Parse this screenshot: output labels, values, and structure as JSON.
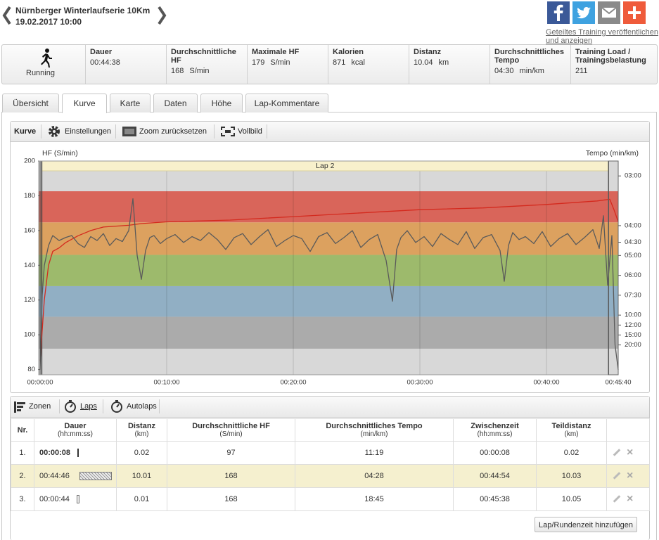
{
  "header": {
    "title": "Nürnberger Winterlaufserie 10Km",
    "date": "19.02.2017 10:00",
    "share_link": "Geteiltes Training veröffentlichen und anzeigen"
  },
  "summary": {
    "sport": "Running",
    "stats": [
      {
        "label": "Dauer",
        "value": "00:44:38"
      },
      {
        "label": "Durchschnittliche HF",
        "value": "168",
        "unit": "S/min"
      },
      {
        "label": "Maximale HF",
        "value": "179",
        "unit": "S/min"
      },
      {
        "label": "Kalorien",
        "value": "871",
        "unit": "kcal"
      },
      {
        "label": "Distanz",
        "value": "10.04",
        "unit": "km"
      },
      {
        "label": "Durchschnittliches Tempo",
        "value": "04:30",
        "unit": "min/km"
      },
      {
        "label": "Training Load / Trainingsbelastung",
        "value": "211"
      }
    ]
  },
  "tabs": [
    "Übersicht",
    "Kurve",
    "Karte",
    "Daten",
    "Höhe",
    "Lap-Kommentare"
  ],
  "active_tab": 1,
  "chart_toolbar": {
    "title": "Kurve",
    "buttons": [
      "Einstellungen",
      "Zoom zurücksetzen",
      "Vollbild"
    ]
  },
  "chart_data": {
    "type": "line",
    "y_label": "HF (S/min)",
    "y2_label": "Tempo (min/km)",
    "lap_label": "Lap 2",
    "lap_span": [
      8,
      2694
    ],
    "xlim": [
      0,
      2740
    ],
    "xticks": [
      {
        "value": 0,
        "label": "00:00:00"
      },
      {
        "value": 600,
        "label": "00:10:00"
      },
      {
        "value": 1200,
        "label": "00:20:00"
      },
      {
        "value": 1800,
        "label": "00:30:00"
      },
      {
        "value": 2400,
        "label": "00:40:00"
      },
      {
        "value": 2740,
        "label": "00:45:40"
      }
    ],
    "ylim": [
      77,
      200
    ],
    "yticks": [
      80,
      100,
      120,
      140,
      160,
      180,
      200
    ],
    "y2lim": [
      0,
      21.5
    ],
    "y2ticks": [
      {
        "value": 20,
        "label": "03:00"
      },
      {
        "value": 15,
        "label": "04:00"
      },
      {
        "value": 13.33,
        "label": "04:30"
      },
      {
        "value": 12,
        "label": "05:00"
      },
      {
        "value": 10,
        "label": "06:00"
      },
      {
        "value": 8,
        "label": "07:30"
      },
      {
        "value": 6,
        "label": "10:00"
      },
      {
        "value": 5,
        "label": "12:00"
      },
      {
        "value": 4,
        "label": "15:00"
      },
      {
        "value": 3,
        "label": "20:00"
      }
    ],
    "grid": true,
    "zones": [
      {
        "from": 77,
        "to": 92,
        "color": "#d8d8d8"
      },
      {
        "from": 92,
        "to": 110.4,
        "color": "#ababab"
      },
      {
        "from": 110.4,
        "to": 128,
        "color": "#91afc4"
      },
      {
        "from": 128,
        "to": 146,
        "color": "#9dba6c"
      },
      {
        "from": 146,
        "to": 164.7,
        "color": "#dca15f"
      },
      {
        "from": 164.7,
        "to": 182.6,
        "color": "#d9655a"
      },
      {
        "from": 182.6,
        "to": 200,
        "color": "#d8d8d8"
      }
    ],
    "series": [
      {
        "color": "#d42a1e",
        "x": [
          0,
          20,
          40,
          60,
          90,
          120,
          180,
          240,
          300,
          420,
          480,
          600,
          900,
          1200,
          1500,
          1800,
          2100,
          2400,
          2640,
          2700,
          2720,
          2740
        ],
        "values": [
          85,
          120,
          140,
          148,
          150,
          153,
          157,
          160,
          162,
          163,
          164,
          165,
          166,
          168,
          170,
          172,
          173,
          175,
          177,
          178,
          172,
          165
        ]
      },
      {
        "color": "#5a5a5a",
        "axis": "y2",
        "x": [
          0,
          10,
          20,
          40,
          60,
          90,
          120,
          150,
          180,
          210,
          240,
          270,
          300,
          330,
          360,
          390,
          420,
          440,
          460,
          480,
          500,
          520,
          540,
          570,
          600,
          640,
          680,
          720,
          760,
          800,
          840,
          880,
          920,
          960,
          1000,
          1040,
          1080,
          1120,
          1160,
          1200,
          1240,
          1280,
          1320,
          1360,
          1400,
          1440,
          1480,
          1520,
          1560,
          1600,
          1640,
          1670,
          1690,
          1710,
          1740,
          1780,
          1820,
          1860,
          1900,
          1940,
          1980,
          2020,
          2060,
          2100,
          2140,
          2180,
          2200,
          2220,
          2240,
          2270,
          2300,
          2340,
          2380,
          2420,
          2460,
          2500,
          2540,
          2580,
          2620,
          2650,
          2670,
          2690,
          2710,
          2725,
          2740
        ],
        "values": [
          0.5,
          8,
          11,
          13,
          14,
          13.5,
          13.8,
          14,
          13.2,
          12.8,
          13.9,
          13.5,
          14.2,
          13,
          13.7,
          13.4,
          14.5,
          17.7,
          12,
          9.6,
          12.5,
          13.8,
          14,
          13.2,
          13.7,
          14.1,
          13.3,
          13.9,
          13.5,
          14.3,
          13.6,
          12.6,
          13.8,
          14.2,
          13.1,
          13.9,
          14.6,
          12.9,
          13.5,
          14,
          13.7,
          12.4,
          13.9,
          14.3,
          13.2,
          13.8,
          14.5,
          12.8,
          13.6,
          14.1,
          11.5,
          7.4,
          12.6,
          13.8,
          14.5,
          13.3,
          13.9,
          12.9,
          14.2,
          13.6,
          13.1,
          14.4,
          12.7,
          13.8,
          14.1,
          12.5,
          9.4,
          13,
          14.3,
          13.6,
          13.9,
          13.2,
          14.4,
          12.9,
          13.7,
          14.2,
          13.1,
          13.8,
          14.6,
          12.7,
          16,
          9,
          14,
          3,
          0.5
        ]
      }
    ]
  },
  "laps_toolbar": [
    "Zonen",
    "Laps",
    "Autolaps"
  ],
  "active_laps_tab": 1,
  "table": {
    "columns": [
      {
        "title": "Nr."
      },
      {
        "title": "Dauer",
        "unit": "(hh:mm:ss)"
      },
      {
        "title": "Distanz",
        "unit": "(km)"
      },
      {
        "title": "Durchschnittliche HF",
        "unit": "(S/min)"
      },
      {
        "title": "Durchschnittliches Tempo",
        "unit": "(min/km)"
      },
      {
        "title": "Zwischenzeit",
        "unit": "(hh:mm:ss)"
      },
      {
        "title": "Teildistanz",
        "unit": "(km)"
      }
    ],
    "rows": [
      [
        "1.",
        "00:00:08",
        "0.02",
        "97",
        "11:19",
        "00:00:08",
        "0.02"
      ],
      [
        "2.",
        "00:44:46",
        "10.01",
        "168",
        "04:28",
        "00:44:54",
        "10.03"
      ],
      [
        "3.",
        "00:00:44",
        "0.01",
        "168",
        "18:45",
        "00:45:38",
        "10.05"
      ]
    ],
    "highlight_row": 1
  },
  "button": "Lap/Rundenzeit hinzufügen"
}
